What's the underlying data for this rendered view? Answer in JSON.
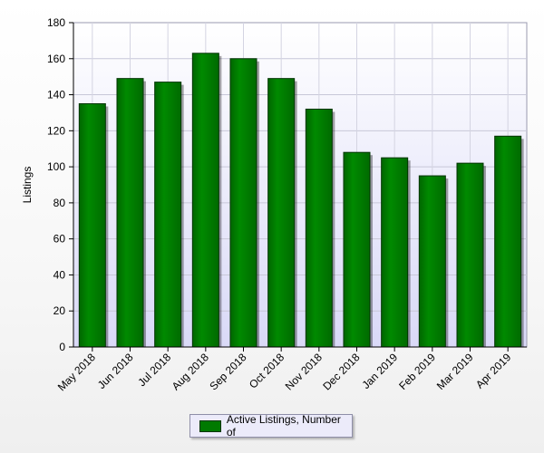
{
  "chart_data": {
    "type": "bar",
    "categories": [
      "May 2018",
      "Jun 2018",
      "Jul 2018",
      "Aug 2018",
      "Sep 2018",
      "Oct 2018",
      "Nov 2018",
      "Dec 2018",
      "Jan 2019",
      "Feb 2019",
      "Mar 2019",
      "Apr 2019"
    ],
    "series": [
      {
        "name": "Active Listings, Number of",
        "values": [
          135,
          149,
          147,
          163,
          160,
          149,
          132,
          108,
          105,
          95,
          102,
          117
        ]
      }
    ],
    "title": "",
    "xlabel": "",
    "ylabel": "Listings",
    "ylim": [
      0,
      180
    ],
    "yticks": [
      "0",
      "20",
      "40",
      "60",
      "80",
      "100",
      "120",
      "140",
      "160",
      "180"
    ],
    "grid": true,
    "legend_position": "bottom-center",
    "colors": {
      "bar": "#007a00",
      "bar_edge": "#003300",
      "plot_bg_top": "#ffffff",
      "plot_bg_bottom": "#d9d9f7"
    }
  }
}
